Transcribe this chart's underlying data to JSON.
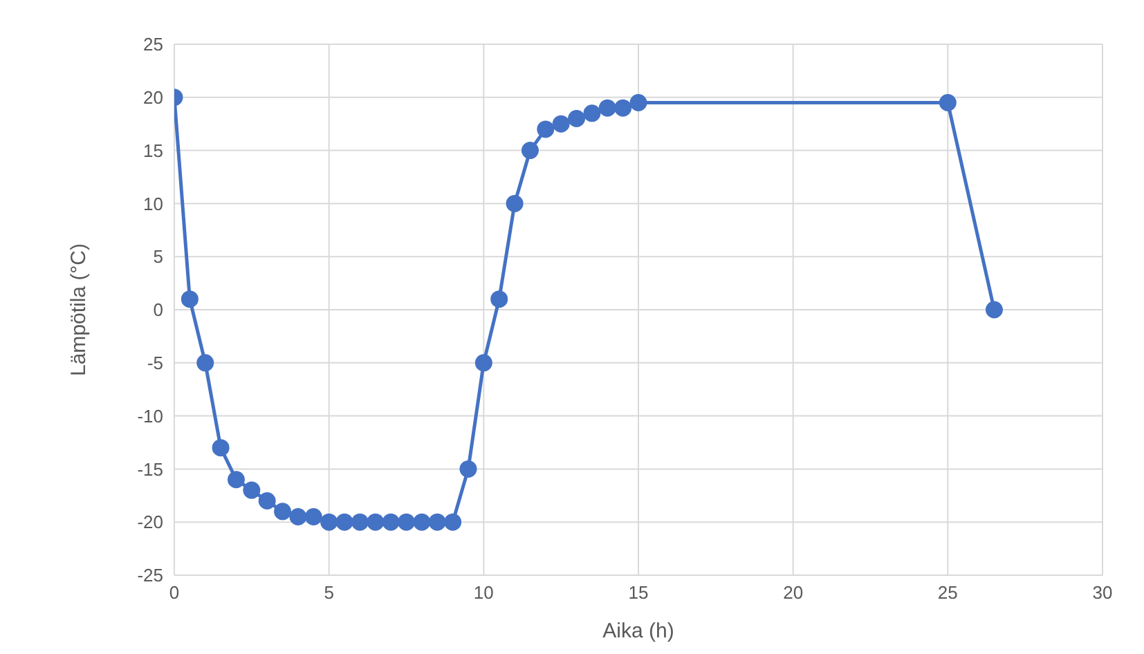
{
  "chart_data": {
    "type": "line",
    "xlabel": "Aika (h)",
    "ylabel": "Lämpötila (°C)",
    "x": [
      0,
      0.5,
      1,
      1.5,
      2,
      2.5,
      3,
      3.5,
      4,
      4.5,
      5,
      5.5,
      6,
      6.5,
      7,
      7.5,
      8,
      8.5,
      9,
      9.5,
      10,
      10.5,
      11,
      11.5,
      12,
      12.5,
      13,
      13.5,
      14,
      14.5,
      15,
      25,
      26.5
    ],
    "series": [
      {
        "color": "#4472c4",
        "values": [
          20,
          1,
          -5,
          -13,
          -16,
          -17,
          -18,
          -19,
          -19.5,
          -19.5,
          -20,
          -20,
          -20,
          -20,
          -20,
          -20,
          -20,
          -20,
          -20,
          -15,
          -5,
          1,
          10,
          15,
          17,
          17.5,
          18,
          18.5,
          19,
          19,
          19.5,
          19.5,
          0
        ]
      }
    ],
    "xlim": [
      0,
      30
    ],
    "xticks": [
      0,
      5,
      10,
      15,
      20,
      25,
      30
    ],
    "ylim": [
      -25,
      25
    ],
    "yticks": [
      -25,
      -20,
      -15,
      -10,
      -5,
      0,
      5,
      10,
      15,
      20,
      25
    ],
    "grid": true,
    "legend": false,
    "marker": "circle",
    "line_style": "solid"
  }
}
